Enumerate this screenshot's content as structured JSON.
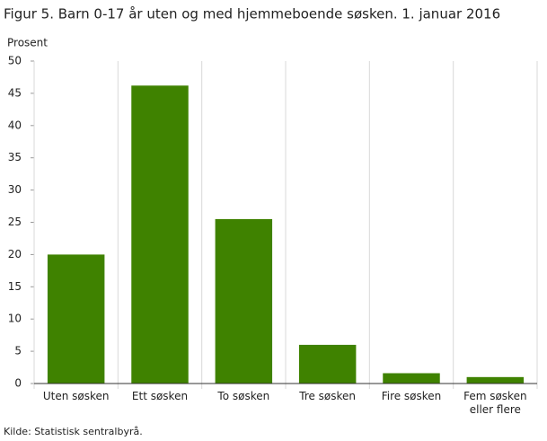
{
  "chart_data": {
    "type": "bar",
    "title": "Figur 5. Barn 0-17 år uten og med hjemmeboende søsken. 1. januar 2016",
    "y_label": "Prosent",
    "categories": [
      "Uten søsken",
      "Ett søsken",
      "To søsken",
      "Tre søsken",
      "Fire søsken",
      "Fem søsken eller flere"
    ],
    "values": [
      20,
      46.2,
      25.5,
      6,
      1.6,
      1
    ],
    "color": "#3f8200",
    "ylim": [
      0,
      50
    ],
    "yticks": [
      0,
      5,
      10,
      15,
      20,
      25,
      30,
      35,
      40,
      45,
      50
    ],
    "source": "Kilde: Statistisk sentralbyrå."
  }
}
